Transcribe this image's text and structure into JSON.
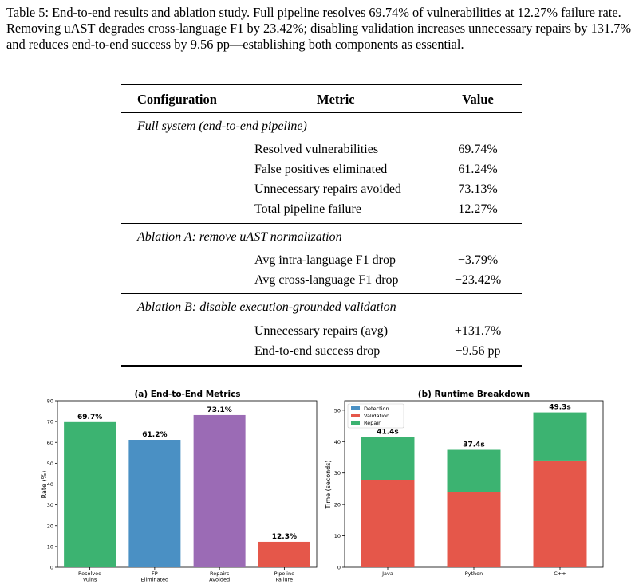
{
  "caption": "Table 5: End-to-end results and ablation study. Full pipeline resolves 69.74% of vulnerabilities at 12.27% failure rate. Removing uAST degrades cross-language F1 by 23.42%; disabling validation increases unnecessary repairs by 131.7% and reduces end-to-end success by 9.56 pp—establishing both components as essential.",
  "table": {
    "headers": {
      "configuration": "Configuration",
      "metric": "Metric",
      "value": "Value"
    },
    "sections": [
      {
        "title": "Full system (end-to-end pipeline)",
        "rows": [
          {
            "metric": "Resolved vulnerabilities",
            "value": "69.74%"
          },
          {
            "metric": "False positives eliminated",
            "value": "61.24%"
          },
          {
            "metric": "Unnecessary repairs avoided",
            "value": "73.13%"
          },
          {
            "metric": "Total pipeline failure",
            "value": "12.27%"
          }
        ]
      },
      {
        "title": "Ablation A: remove uAST normalization",
        "rows": [
          {
            "metric": "Avg intra-language F1 drop",
            "value": "−3.79%"
          },
          {
            "metric": "Avg cross-language F1 drop",
            "value": "−23.42%"
          }
        ]
      },
      {
        "title": "Ablation B: disable execution-grounded validation",
        "rows": [
          {
            "metric": "Unnecessary repairs (avg)",
            "value": "+131.7%"
          },
          {
            "metric": "End-to-end success drop",
            "value": "−9.56 pp"
          }
        ]
      }
    ]
  },
  "chart_data": [
    {
      "type": "bar",
      "title": "(a) End-to-End Metrics",
      "xlabel": "",
      "ylabel": "Rate (%)",
      "ylim": [
        0,
        80
      ],
      "yticks": [
        0,
        10,
        20,
        30,
        40,
        50,
        60,
        70,
        80
      ],
      "grid": false,
      "categories": [
        "Resolved\nVulns",
        "FP\nEliminated",
        "Repairs\nAvoided",
        "Pipeline\nFailure"
      ],
      "values": [
        69.74,
        61.24,
        73.13,
        12.27
      ],
      "data_labels": [
        "69.7%",
        "61.2%",
        "73.1%",
        "12.3%"
      ],
      "colors": [
        "#3cb371",
        "#4a90c4",
        "#9b6bb5",
        "#e5574a"
      ]
    },
    {
      "type": "bar",
      "stacked": true,
      "title": "(b) Runtime Breakdown",
      "xlabel": "",
      "ylabel": "Time (seconds)",
      "ylim": [
        0,
        53
      ],
      "yticks": [
        0,
        10,
        20,
        30,
        40,
        50
      ],
      "grid": false,
      "legend_position": "top-left",
      "categories": [
        "Java",
        "Python",
        "C++"
      ],
      "series": [
        {
          "name": "Detection",
          "color": "#4a90c4",
          "values": [
            0,
            0,
            0
          ]
        },
        {
          "name": "Validation",
          "color": "#e5574a",
          "values": [
            27.8,
            24.0,
            34.0
          ]
        },
        {
          "name": "Repair",
          "color": "#3cb371",
          "values": [
            13.6,
            13.4,
            15.3
          ]
        }
      ],
      "data_labels": [
        "41.4s",
        "37.4s",
        "49.3s"
      ],
      "totals": [
        41.4,
        37.4,
        49.3
      ]
    }
  ]
}
